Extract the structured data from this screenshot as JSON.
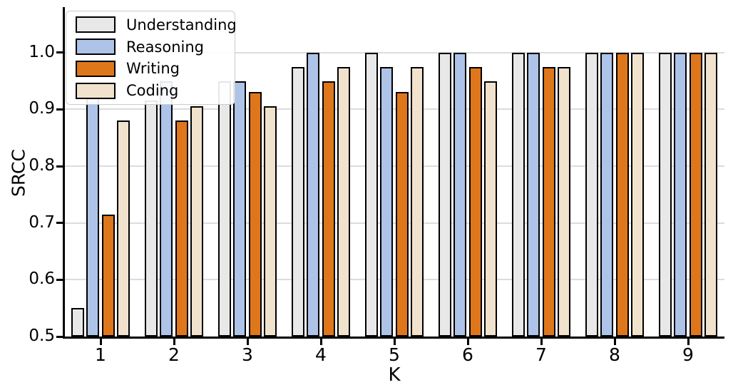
{
  "chart_data": {
    "type": "bar",
    "title": "",
    "xlabel": "K",
    "ylabel": "SRCC",
    "categories": [
      "1",
      "2",
      "3",
      "4",
      "5",
      "6",
      "7",
      "8",
      "9"
    ],
    "series": [
      {
        "name": "Understanding",
        "color": "#e8e8e8",
        "values": [
          0.55,
          0.915,
          0.95,
          0.975,
          1.0,
          1.0,
          1.0,
          1.0,
          1.0
        ]
      },
      {
        "name": "Reasoning",
        "color": "#aec3e8",
        "values": [
          0.92,
          0.95,
          0.95,
          1.0,
          0.975,
          1.0,
          1.0,
          1.0,
          1.0
        ]
      },
      {
        "name": "Writing",
        "color": "#de771c",
        "values": [
          0.715,
          0.88,
          0.93,
          0.95,
          0.93,
          0.975,
          0.975,
          1.0,
          1.0
        ]
      },
      {
        "name": "Coding",
        "color": "#f1e2cd",
        "values": [
          0.88,
          0.905,
          0.905,
          0.975,
          0.975,
          0.95,
          0.975,
          1.0,
          1.0
        ]
      }
    ],
    "bar_edge_color": "#000000",
    "ylim": [
      0.5,
      1.08
    ],
    "yticks": [
      0.5,
      0.6,
      0.7,
      0.8,
      0.9,
      1.0
    ],
    "grid": "horizontal",
    "gridline_color": "#dcdcdc",
    "legend": {
      "position": "upper-left",
      "labels": [
        "Understanding",
        "Reasoning",
        "Writing",
        "Coding"
      ]
    }
  }
}
